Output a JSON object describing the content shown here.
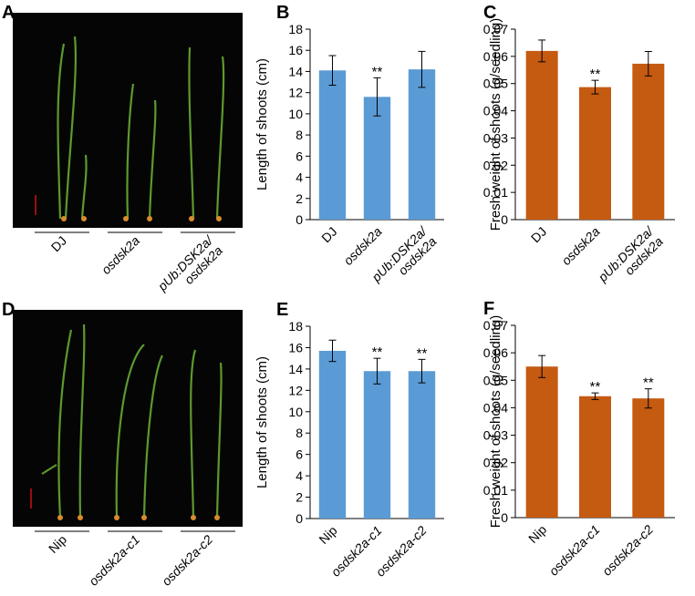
{
  "photos": [
    {
      "letter": "A",
      "labels": [
        "DJ",
        "osdsk2a",
        "pUb:DSK2a/\nosdsk2a"
      ]
    },
    {
      "letter": "D",
      "labels": [
        "Nip",
        "osdsk2a-c1",
        "osdsk2a-c2"
      ]
    }
  ],
  "chart_data": [
    {
      "type": "bar",
      "letter": "B",
      "ylabel": "Length of shoots (cm)",
      "categories": [
        "DJ",
        "osdsk2a",
        "pUb:DSK2a/\nosdsk2a"
      ],
      "category_italic": [
        false,
        true,
        true
      ],
      "values": [
        14.1,
        11.6,
        14.2
      ],
      "errors": [
        1.4,
        1.8,
        1.7
      ],
      "significance": [
        null,
        "**",
        null
      ],
      "color": "#5b9bd5",
      "ylim": [
        0,
        18
      ],
      "yticks": [
        0,
        2,
        4,
        6,
        8,
        10,
        12,
        14,
        16,
        18
      ]
    },
    {
      "type": "bar",
      "letter": "C",
      "ylabel": "Fresh weight of shoots (g/seedling)",
      "categories": [
        "DJ",
        "osdsk2a",
        "pUb:DSK2a/\nosdsk2a"
      ],
      "category_italic": [
        false,
        true,
        true
      ],
      "values": [
        0.062,
        0.0487,
        0.0573
      ],
      "errors": [
        0.004,
        0.0025,
        0.0045
      ],
      "significance": [
        null,
        "**",
        null
      ],
      "color": "#c55a11",
      "ylim": [
        0,
        0.07
      ],
      "yticks": [
        0,
        0.01,
        0.02,
        0.03,
        0.04,
        0.05,
        0.06,
        0.07
      ]
    },
    {
      "type": "bar",
      "letter": "E",
      "ylabel": "Length of shoots (cm)",
      "categories": [
        "Nip",
        "osdsk2a-c1",
        "osdsk2a-c2"
      ],
      "category_italic": [
        false,
        true,
        true
      ],
      "values": [
        15.7,
        13.8,
        13.8
      ],
      "errors": [
        1.0,
        1.2,
        1.1
      ],
      "significance": [
        null,
        "**",
        "**"
      ],
      "color": "#5b9bd5",
      "ylim": [
        0,
        18
      ],
      "yticks": [
        0,
        2,
        4,
        6,
        8,
        10,
        12,
        14,
        16,
        18
      ]
    },
    {
      "type": "bar",
      "letter": "F",
      "ylabel": "Fresh weight of shoots (g/seedling)",
      "categories": [
        "Nip",
        "osdsk2a-c1",
        "osdsk2a-c2"
      ],
      "category_italic": [
        false,
        true,
        true
      ],
      "values": [
        0.055,
        0.0442,
        0.0434
      ],
      "errors": [
        0.004,
        0.0012,
        0.0035
      ],
      "significance": [
        null,
        "**",
        "**"
      ],
      "color": "#c55a11",
      "ylim": [
        0,
        0.07
      ],
      "yticks": [
        0,
        0.01,
        0.02,
        0.03,
        0.04,
        0.05,
        0.06,
        0.07
      ]
    }
  ]
}
